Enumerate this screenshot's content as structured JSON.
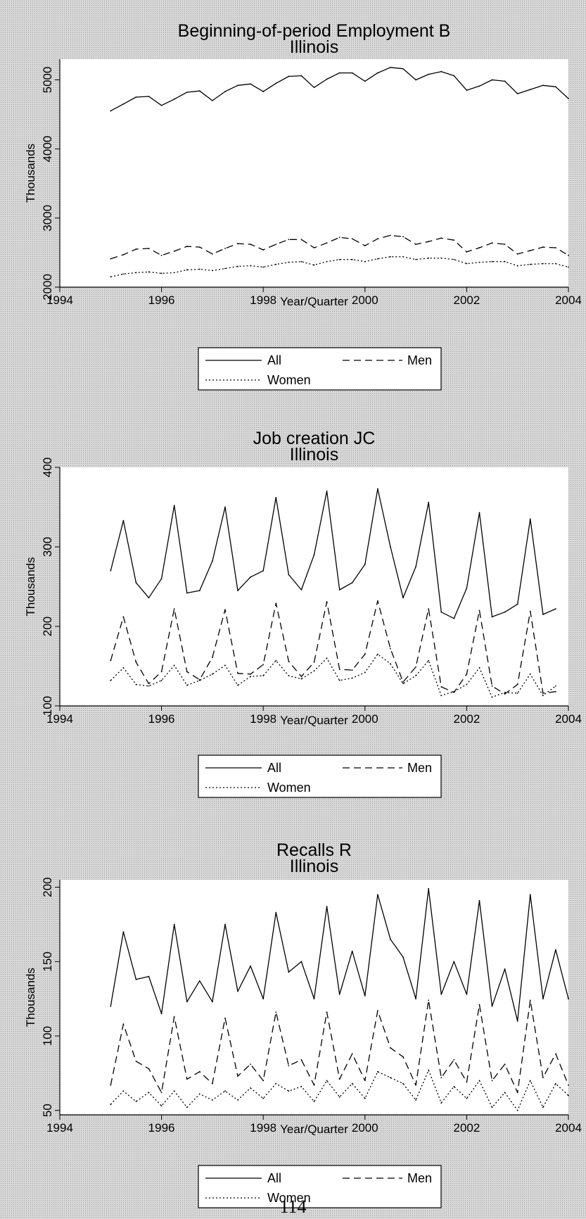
{
  "chart_data": [
    {
      "type": "line",
      "title": "Beginning-of-period Employment B",
      "subtitle": "Illinois",
      "xlabel": "Year/Quarter",
      "ylabel": "Thousands",
      "xlim": [
        1994,
        2004
      ],
      "ylim": [
        2000,
        5300
      ],
      "x_ticks": [
        1994,
        1996,
        1998,
        2000,
        2002,
        2004
      ],
      "y_ticks": [
        2000,
        3000,
        4000,
        5000
      ],
      "grid": false,
      "legend_position": "bottom",
      "x": [
        1995.0,
        1995.25,
        1995.5,
        1995.75,
        1996.0,
        1996.25,
        1996.5,
        1996.75,
        1997.0,
        1997.25,
        1997.5,
        1997.75,
        1998.0,
        1998.25,
        1998.5,
        1998.75,
        1999.0,
        1999.25,
        1999.5,
        1999.75,
        2000.0,
        2000.25,
        2000.5,
        2000.75,
        2001.0,
        2001.25,
        2001.5,
        2001.75,
        2002.0,
        2002.25,
        2002.5,
        2002.75,
        2003.0,
        2003.25,
        2003.5,
        2003.75,
        2004.0
      ],
      "series": [
        {
          "name": "All",
          "dash": "solid",
          "values": [
            4550,
            4650,
            4750,
            4760,
            4630,
            4720,
            4820,
            4840,
            4700,
            4830,
            4920,
            4940,
            4830,
            4950,
            5050,
            5060,
            4890,
            5010,
            5100,
            5100,
            4980,
            5100,
            5180,
            5160,
            5000,
            5080,
            5120,
            5060,
            4850,
            4910,
            5000,
            4980,
            4800,
            4860,
            4920,
            4900,
            4730
          ]
        },
        {
          "name": "Men",
          "dash": "dashed",
          "values": [
            2410,
            2470,
            2550,
            2560,
            2460,
            2520,
            2590,
            2580,
            2480,
            2560,
            2630,
            2620,
            2540,
            2620,
            2690,
            2690,
            2570,
            2640,
            2720,
            2700,
            2600,
            2700,
            2750,
            2730,
            2620,
            2660,
            2710,
            2680,
            2510,
            2570,
            2640,
            2620,
            2480,
            2530,
            2580,
            2570,
            2460
          ]
        },
        {
          "name": "Women",
          "dash": "dotted",
          "values": [
            2150,
            2190,
            2210,
            2220,
            2200,
            2210,
            2250,
            2260,
            2240,
            2270,
            2300,
            2310,
            2290,
            2330,
            2360,
            2370,
            2320,
            2370,
            2400,
            2400,
            2370,
            2410,
            2440,
            2440,
            2400,
            2420,
            2420,
            2400,
            2340,
            2360,
            2370,
            2370,
            2310,
            2330,
            2340,
            2340,
            2290
          ]
        }
      ],
      "legend": {
        "entries": [
          "All",
          "Men",
          "Women"
        ]
      }
    },
    {
      "type": "line",
      "title": "Job creation JC",
      "subtitle": "Illinois",
      "xlabel": "Year/Quarter",
      "ylabel": "Thousands",
      "xlim": [
        1994,
        2004
      ],
      "ylim": [
        100,
        400
      ],
      "x_ticks": [
        1994,
        1996,
        1998,
        2000,
        2002,
        2004
      ],
      "y_ticks": [
        100,
        200,
        300,
        400
      ],
      "grid": false,
      "legend_position": "bottom",
      "x": [
        1995.0,
        1995.25,
        1995.5,
        1995.75,
        1996.0,
        1996.25,
        1996.5,
        1996.75,
        1997.0,
        1997.25,
        1997.5,
        1997.75,
        1998.0,
        1998.25,
        1998.5,
        1998.75,
        1999.0,
        1999.25,
        1999.5,
        1999.75,
        2000.0,
        2000.25,
        2000.5,
        2000.75,
        2001.0,
        2001.25,
        2001.5,
        2001.75,
        2002.0,
        2002.25,
        2002.5,
        2002.75,
        2003.0,
        2003.25,
        2003.5,
        2003.75
      ],
      "series": [
        {
          "name": "All",
          "dash": "solid",
          "values": [
            270,
            333,
            255,
            236,
            260,
            352,
            242,
            245,
            282,
            350,
            245,
            262,
            270,
            362,
            265,
            246,
            290,
            370,
            246,
            255,
            278,
            373,
            300,
            236,
            275,
            356,
            218,
            210,
            248,
            343,
            212,
            218,
            228,
            335,
            215,
            222
          ]
        },
        {
          "name": "Men",
          "dash": "dashed",
          "values": [
            157,
            212,
            155,
            128,
            143,
            222,
            143,
            133,
            161,
            221,
            141,
            140,
            152,
            229,
            156,
            137,
            155,
            231,
            146,
            145,
            165,
            232,
            172,
            130,
            149,
            222,
            124,
            117,
            140,
            220,
            125,
            115,
            127,
            219,
            116,
            118
          ]
        },
        {
          "name": "Women",
          "dash": "dotted",
          "values": [
            132,
            148,
            127,
            125,
            132,
            151,
            126,
            132,
            140,
            151,
            126,
            137,
            138,
            157,
            138,
            134,
            144,
            160,
            132,
            135,
            142,
            165,
            153,
            128,
            138,
            157,
            113,
            118,
            127,
            148,
            111,
            117,
            116,
            140,
            113,
            125
          ]
        }
      ],
      "legend": {
        "entries": [
          "All",
          "Men",
          "Women"
        ]
      }
    },
    {
      "type": "line",
      "title": "Recalls R",
      "subtitle": "Illinois",
      "xlabel": "Year/Quarter",
      "ylabel": "Thousands",
      "xlim": [
        1994,
        2004
      ],
      "ylim": [
        47,
        205
      ],
      "x_ticks": [
        1994,
        1996,
        1998,
        2000,
        2002,
        2004
      ],
      "y_ticks": [
        50,
        100,
        150,
        200
      ],
      "grid": false,
      "legend_position": "bottom",
      "x": [
        1995.0,
        1995.25,
        1995.5,
        1995.75,
        1996.0,
        1996.25,
        1996.5,
        1996.75,
        1997.0,
        1997.25,
        1997.5,
        1997.75,
        1998.0,
        1998.25,
        1998.5,
        1998.75,
        1999.0,
        1999.25,
        1999.5,
        1999.75,
        2000.0,
        2000.25,
        2000.5,
        2000.75,
        2001.0,
        2001.25,
        2001.5,
        2001.75,
        2002.0,
        2002.25,
        2002.5,
        2002.75,
        2003.0,
        2003.25,
        2003.5,
        2003.75,
        2004.0
      ],
      "series": [
        {
          "name": "All",
          "dash": "solid",
          "values": [
            120,
            170,
            138,
            140,
            115,
            175,
            123,
            137,
            123,
            175,
            130,
            147,
            125,
            183,
            143,
            150,
            125,
            187,
            128,
            157,
            127,
            195,
            165,
            153,
            125,
            199,
            128,
            150,
            128,
            191,
            120,
            145,
            110,
            195,
            125,
            158,
            125
          ]
        },
        {
          "name": "Men",
          "dash": "dashed",
          "values": [
            67,
            108,
            83,
            78,
            62,
            113,
            71,
            76,
            68,
            112,
            73,
            81,
            70,
            116,
            80,
            84,
            67,
            116,
            71,
            88,
            70,
            117,
            92,
            86,
            67,
            124,
            72,
            84,
            69,
            121,
            70,
            81,
            62,
            124,
            72,
            88,
            67
          ]
        },
        {
          "name": "Women",
          "dash": "dotted",
          "values": [
            54,
            63,
            56,
            62,
            53,
            63,
            52,
            61,
            57,
            63,
            57,
            65,
            58,
            68,
            63,
            66,
            56,
            70,
            59,
            68,
            58,
            76,
            72,
            68,
            57,
            77,
            55,
            66,
            58,
            70,
            52,
            62,
            50,
            70,
            52,
            68,
            60
          ]
        }
      ],
      "legend": {
        "entries": [
          "All",
          "Men",
          "Women"
        ]
      }
    }
  ],
  "page_number": "114"
}
